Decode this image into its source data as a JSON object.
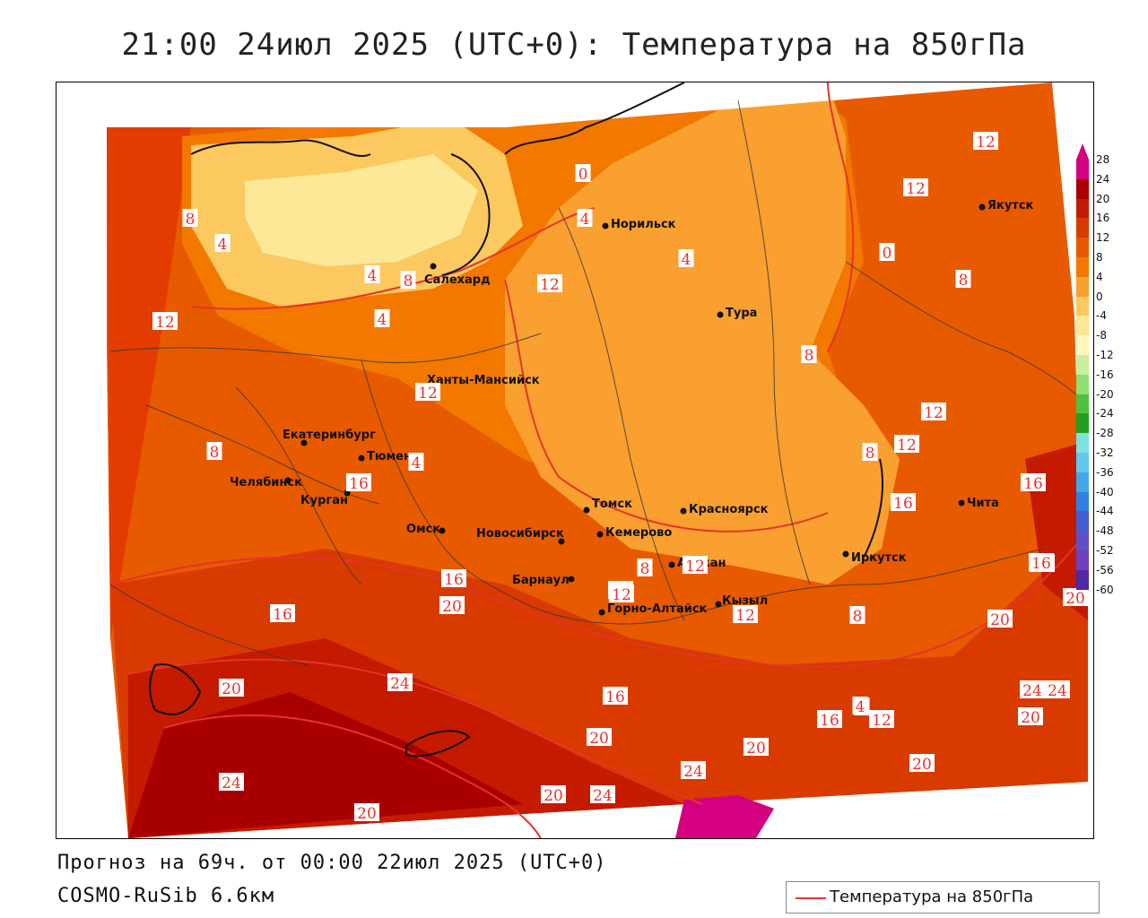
{
  "title": "21:00 24июл 2025 (UTC+0): Температура на 850гПа",
  "footer": {
    "forecast": "Прогноз на 69ч. от 00:00 22июл 2025 (UTC+0)",
    "model": "COSMO-RuSib 6.6км"
  },
  "legend": {
    "label": "Температура на 850гПа",
    "color": "#e6332a"
  },
  "colorbar": {
    "ticks": [
      "28",
      "24",
      "20",
      "16",
      "12",
      "8",
      "4",
      "0",
      "-4",
      "-8",
      "-12",
      "-16",
      "-20",
      "-24",
      "-28",
      "-32",
      "-36",
      "-40",
      "-44",
      "-48",
      "-52",
      "-56",
      "-60"
    ],
    "colors": [
      "#d4007f",
      "#a80000",
      "#c41a00",
      "#d83a00",
      "#e85a00",
      "#f27800",
      "#f9a030",
      "#fcc860",
      "#fde898",
      "#fff6c0",
      "#c8f0a0",
      "#8ee070",
      "#50c040",
      "#20a020",
      "#80e0e0",
      "#60c8f0",
      "#40a8e8",
      "#3080e0",
      "#4060d0",
      "#6050c8",
      "#7040c0",
      "#5028a8",
      "#3010a0"
    ]
  },
  "cities": [
    {
      "name": "Норильск"
    },
    {
      "name": "Якутск"
    },
    {
      "name": "Салехард"
    },
    {
      "name": "Тура"
    },
    {
      "name": "Ханты-Мансийск"
    },
    {
      "name": "Екатеринбург"
    },
    {
      "name": "Тюмень"
    },
    {
      "name": "Челябинск"
    },
    {
      "name": "Курган"
    },
    {
      "name": "Омск"
    },
    {
      "name": "Новосибирск"
    },
    {
      "name": "Томск"
    },
    {
      "name": "Красноярск"
    },
    {
      "name": "Кемерово"
    },
    {
      "name": "Абакан"
    },
    {
      "name": "Барнаул"
    },
    {
      "name": "Горно-Алтайск"
    },
    {
      "name": "Кызыл"
    },
    {
      "name": "Иркутск"
    },
    {
      "name": "Чита"
    }
  ],
  "isolines": {
    "labels": [
      "12",
      "12",
      "0",
      "4",
      "8",
      "4",
      "4",
      "0",
      "4",
      "8",
      "12",
      "8",
      "4",
      "12",
      "8",
      "12",
      "12",
      "8",
      "4",
      "8",
      "12",
      "16",
      "16",
      "8",
      "16",
      "20",
      "16",
      "20",
      "24",
      "12",
      "12",
      "12",
      "8",
      "16",
      "20",
      "16",
      "20",
      "24",
      "20",
      "16",
      "8",
      "12",
      "16",
      "20",
      "24",
      "20",
      "20",
      "24",
      "24",
      "20",
      "24",
      "20",
      "24",
      "20",
      "4"
    ]
  }
}
